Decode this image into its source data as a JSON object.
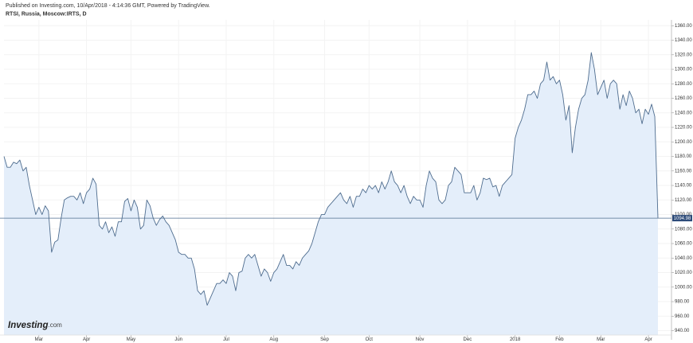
{
  "chart_data": {
    "type": "area",
    "subtitle": "Published on Investing.com, 10/Apr/2018 - 4:14:36 GMT, Powered by TradingView.",
    "title": "RTSI, Russia, Moscow:IRTS, D",
    "logo": "Investing",
    "logo_suffix": ".com",
    "grid": true,
    "categories": [
      null,
      null,
      null,
      null,
      null,
      null,
      null,
      null,
      null,
      null,
      null,
      "Mar",
      null,
      null,
      null,
      null,
      null,
      null,
      null,
      null,
      null,
      null,
      null,
      null,
      null,
      null,
      "Apr",
      null,
      null,
      null,
      null,
      null,
      null,
      null,
      null,
      null,
      null,
      null,
      null,
      null,
      "May",
      null,
      null,
      null,
      null,
      null,
      null,
      null,
      null,
      null,
      null,
      null,
      null,
      null,
      null,
      "Jun",
      null,
      null,
      null,
      null,
      null,
      null,
      null,
      null,
      null,
      null,
      null,
      null,
      null,
      null,
      "Jul",
      null,
      null,
      null,
      null,
      null,
      null,
      null,
      null,
      null,
      null,
      null,
      null,
      null,
      null,
      "Aug",
      null,
      null,
      null,
      null,
      null,
      null,
      null,
      null,
      null,
      null,
      null,
      null,
      null,
      null,
      null,
      "Sep",
      null,
      null,
      null,
      null,
      null,
      null,
      null,
      null,
      null,
      null,
      null,
      null,
      null,
      "Oct",
      null,
      null,
      null,
      null,
      null,
      null,
      null,
      null,
      null,
      null,
      null,
      null,
      null,
      null,
      null,
      "Nov",
      null,
      null,
      null,
      null,
      null,
      null,
      null,
      null,
      null,
      null,
      null,
      null,
      null,
      null,
      "Dec",
      null,
      null,
      null,
      null,
      null,
      null,
      null,
      null,
      null,
      null,
      null,
      null,
      null,
      null,
      "2018",
      null,
      null,
      null,
      null,
      null,
      null,
      null,
      null,
      null,
      null,
      null,
      null,
      null,
      "Feb",
      null,
      null,
      null,
      null,
      null,
      null,
      null,
      null,
      null,
      null,
      null,
      null,
      "Mar",
      null,
      null,
      null,
      null,
      null,
      null,
      null,
      null,
      null,
      null,
      null,
      null,
      null,
      null,
      "Apr",
      null,
      null,
      null
    ],
    "series": [
      {
        "name": "RTSI",
        "color": "#4f6d8f",
        "fill": "#e4eefa",
        "values": [
          1180,
          1165,
          1165,
          1172,
          1170,
          1175,
          1160,
          1165,
          1140,
          1120,
          1100,
          1110,
          1100,
          1112,
          1105,
          1048,
          1062,
          1065,
          1095,
          1120,
          1123,
          1125,
          1125,
          1120,
          1130,
          1115,
          1130,
          1135,
          1150,
          1142,
          1085,
          1080,
          1090,
          1075,
          1083,
          1070,
          1090,
          1090,
          1118,
          1122,
          1105,
          1120,
          1110,
          1080,
          1085,
          1120,
          1112,
          1095,
          1085,
          1093,
          1098,
          1090,
          1085,
          1075,
          1065,
          1048,
          1045,
          1045,
          1040,
          1040,
          1025,
          995,
          990,
          995,
          975,
          985,
          995,
          1005,
          1005,
          1010,
          1005,
          1020,
          1015,
          995,
          1020,
          1022,
          1040,
          1045,
          1040,
          1045,
          1030,
          1015,
          1025,
          1020,
          1008,
          1020,
          1025,
          1035,
          1045,
          1030,
          1030,
          1025,
          1035,
          1030,
          1040,
          1045,
          1050,
          1060,
          1075,
          1090,
          1100,
          1100,
          1110,
          1115,
          1120,
          1125,
          1130,
          1120,
          1115,
          1125,
          1110,
          1125,
          1125,
          1135,
          1130,
          1140,
          1135,
          1140,
          1130,
          1145,
          1135,
          1145,
          1160,
          1145,
          1140,
          1130,
          1140,
          1125,
          1115,
          1125,
          1120,
          1120,
          1110,
          1140,
          1160,
          1150,
          1145,
          1120,
          1115,
          1120,
          1140,
          1145,
          1165,
          1160,
          1155,
          1130,
          1130,
          1130,
          1140,
          1120,
          1130,
          1150,
          1148,
          1150,
          1138,
          1140,
          1125,
          1140,
          1145,
          1150,
          1155,
          1205,
          1220,
          1230,
          1245,
          1265,
          1265,
          1270,
          1260,
          1280,
          1285,
          1310,
          1285,
          1290,
          1280,
          1285,
          1265,
          1230,
          1250,
          1185,
          1220,
          1245,
          1260,
          1265,
          1285,
          1323,
          1300,
          1265,
          1275,
          1285,
          1260,
          1280,
          1285,
          1280,
          1245,
          1265,
          1250,
          1270,
          1260,
          1240,
          1245,
          1225,
          1245,
          1238,
          1252,
          1235,
          1094.98
        ]
      }
    ],
    "ylim": [
      934,
      1368
    ],
    "yticks": [
      {
        "value": 940,
        "label": "940.00"
      },
      {
        "value": 960,
        "label": "960.00"
      },
      {
        "value": 980,
        "label": "980.00"
      },
      {
        "value": 1000,
        "label": "1000.00"
      },
      {
        "value": 1020,
        "label": "1020.00"
      },
      {
        "value": 1040,
        "label": "1040.00"
      },
      {
        "value": 1060,
        "label": "1060.00"
      },
      {
        "value": 1080,
        "label": "1080.00"
      },
      {
        "value": 1100,
        "label": "1100.00"
      },
      {
        "value": 1120,
        "label": "1120.00"
      },
      {
        "value": 1140,
        "label": "1140.00"
      },
      {
        "value": 1160,
        "label": "1160.00"
      },
      {
        "value": 1180,
        "label": "1180.00"
      },
      {
        "value": 1200,
        "label": "1200.00"
      },
      {
        "value": 1220,
        "label": "1220.00"
      },
      {
        "value": 1240,
        "label": "1240.00"
      },
      {
        "value": 1260,
        "label": "1260.00"
      },
      {
        "value": 1280,
        "label": "1280.00"
      },
      {
        "value": 1300,
        "label": "1300.00"
      },
      {
        "value": 1320,
        "label": "1320.00"
      },
      {
        "value": 1340,
        "label": "1340.00"
      },
      {
        "value": 1360,
        "label": "1360.00"
      }
    ]
  }
}
